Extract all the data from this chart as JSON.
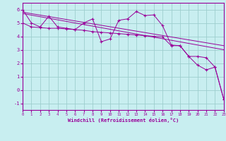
{
  "background_color": "#c8eef0",
  "grid_color": "#9ecece",
  "line_color": "#990099",
  "xlabel": "Windchill (Refroidissement éolien,°C)",
  "xlim": [
    0,
    23
  ],
  "ylim": [
    -1.5,
    6.5
  ],
  "yticks": [
    -1,
    0,
    1,
    2,
    3,
    4,
    5,
    6
  ],
  "xticks": [
    0,
    1,
    2,
    3,
    4,
    5,
    6,
    7,
    8,
    9,
    10,
    11,
    12,
    13,
    14,
    15,
    16,
    17,
    18,
    19,
    20,
    21,
    22,
    23
  ],
  "lines": [
    {
      "x": [
        0,
        1,
        2,
        3,
        4,
        5,
        6,
        7,
        8,
        9,
        10,
        11,
        12,
        13,
        14,
        15,
        16,
        17,
        18,
        19,
        20,
        21,
        22,
        23
      ],
      "y": [
        6.0,
        5.0,
        4.7,
        5.5,
        4.7,
        4.6,
        4.5,
        5.0,
        5.3,
        3.6,
        3.8,
        5.2,
        5.3,
        5.85,
        5.55,
        5.6,
        4.8,
        3.35,
        3.3,
        2.5,
        1.85,
        1.5,
        1.7,
        -0.7
      ],
      "marker": true
    },
    {
      "x": [
        0,
        1,
        2,
        3,
        4,
        5,
        6,
        7,
        8,
        9,
        10,
        11,
        12,
        13,
        14,
        15,
        16,
        17,
        18,
        19,
        20,
        21,
        22,
        23
      ],
      "y": [
        5.0,
        4.7,
        4.65,
        4.6,
        4.6,
        4.55,
        4.5,
        4.45,
        4.35,
        4.3,
        4.25,
        4.2,
        4.15,
        4.1,
        4.05,
        4.0,
        3.95,
        3.3,
        3.3,
        2.5,
        2.5,
        2.4,
        1.7,
        -0.7
      ],
      "marker": true
    },
    {
      "x": [
        0,
        23
      ],
      "y": [
        5.8,
        3.3
      ],
      "marker": false
    },
    {
      "x": [
        0,
        23
      ],
      "y": [
        5.7,
        3.0
      ],
      "marker": false
    }
  ]
}
